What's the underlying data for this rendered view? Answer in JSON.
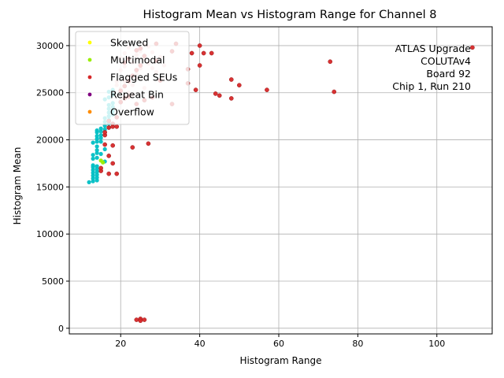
{
  "chart_data": {
    "type": "scatter",
    "title": "Histogram Mean vs Histogram Range for Channel 8",
    "xlabel": "Histogram Range",
    "ylabel": "Histogram Mean",
    "xlim": [
      7,
      114
    ],
    "ylim": [
      -600,
      32000
    ],
    "xticks": [
      20,
      40,
      60,
      80,
      100
    ],
    "yticks": [
      0,
      5000,
      10000,
      15000,
      20000,
      25000,
      30000
    ],
    "grid": true,
    "legend_placement": "top-left",
    "annotation": [
      "ATLAS Upgrade",
      "COLUTAv4",
      "Board 92",
      "Chip 1, Run 210"
    ],
    "series": [
      {
        "name": "Skewed",
        "color": "#ffff00",
        "points": []
      },
      {
        "name": "Multimodal",
        "color": "#99ee00",
        "points": [
          [
            15,
            17800
          ],
          [
            15.5,
            17600
          ]
        ]
      },
      {
        "name": "Flagged SEUs",
        "color": "#d62728",
        "points": [
          [
            24,
            900
          ],
          [
            25,
            1000
          ],
          [
            26,
            900
          ],
          [
            25,
            800
          ],
          [
            17,
            16400
          ],
          [
            19,
            16400
          ],
          [
            15,
            16700
          ],
          [
            15,
            17000
          ],
          [
            18,
            17500
          ],
          [
            17,
            18300
          ],
          [
            18,
            19400
          ],
          [
            16,
            19500
          ],
          [
            23,
            19200
          ],
          [
            27,
            19600
          ],
          [
            16,
            20500
          ],
          [
            16,
            20800
          ],
          [
            17,
            21300
          ],
          [
            18,
            21400
          ],
          [
            19,
            21400
          ],
          [
            18,
            21700
          ],
          [
            17,
            22000
          ],
          [
            19,
            22400
          ],
          [
            20,
            24000
          ],
          [
            21,
            24400
          ],
          [
            22,
            24600
          ],
          [
            24,
            23800
          ],
          [
            26,
            24200
          ],
          [
            28,
            24500
          ],
          [
            33,
            23800
          ],
          [
            48,
            24400
          ],
          [
            39,
            25300
          ],
          [
            44,
            24900
          ],
          [
            45,
            24700
          ],
          [
            57,
            25300
          ],
          [
            74,
            25100
          ],
          [
            20,
            25200
          ],
          [
            21,
            25700
          ],
          [
            22,
            26200
          ],
          [
            23,
            26800
          ],
          [
            24,
            27400
          ],
          [
            25,
            27900
          ],
          [
            30,
            26300
          ],
          [
            37,
            26000
          ],
          [
            48,
            26400
          ],
          [
            50,
            25800
          ],
          [
            40,
            27900
          ],
          [
            37,
            27500
          ],
          [
            21,
            28200
          ],
          [
            22,
            28600
          ],
          [
            26,
            28900
          ],
          [
            29,
            28400
          ],
          [
            33,
            29400
          ],
          [
            38,
            29200
          ],
          [
            41,
            29200
          ],
          [
            43,
            29200
          ],
          [
            24,
            29500
          ],
          [
            25,
            29700
          ],
          [
            29,
            30200
          ],
          [
            34,
            30200
          ],
          [
            40,
            30000
          ],
          [
            73,
            28300
          ],
          [
            109,
            29800
          ]
        ]
      },
      {
        "name": "Repeat Bin",
        "color": "#800080",
        "points": []
      },
      {
        "name": "Overflow",
        "color": "#ff8c00",
        "points": []
      },
      {
        "name": "",
        "color": "#00bfc4",
        "points": [
          [
            12,
            15500
          ],
          [
            13,
            15600
          ],
          [
            14,
            15700
          ],
          [
            13,
            15900
          ],
          [
            14,
            16000
          ],
          [
            13,
            16200
          ],
          [
            14,
            16300
          ],
          [
            13,
            16500
          ],
          [
            14,
            16600
          ],
          [
            13,
            16800
          ],
          [
            14,
            16900
          ],
          [
            13,
            17100
          ],
          [
            14,
            17200
          ],
          [
            13,
            17300
          ],
          [
            16,
            17700
          ],
          [
            13,
            18000
          ],
          [
            14,
            18100
          ],
          [
            13,
            18400
          ],
          [
            14,
            18600
          ],
          [
            15,
            18500
          ],
          [
            14,
            18900
          ],
          [
            16,
            19000
          ],
          [
            14,
            19300
          ],
          [
            13,
            19700
          ],
          [
            14,
            19800
          ],
          [
            15,
            19800
          ],
          [
            14,
            20100
          ],
          [
            15,
            20200
          ],
          [
            14,
            20400
          ],
          [
            15,
            20500
          ],
          [
            14,
            20800
          ],
          [
            15,
            20900
          ],
          [
            14,
            21000
          ],
          [
            16,
            21100
          ],
          [
            15,
            21200
          ],
          [
            17,
            21300
          ],
          [
            16,
            21500
          ],
          [
            17,
            21700
          ],
          [
            16,
            21900
          ],
          [
            17,
            22100
          ],
          [
            16,
            22300
          ],
          [
            17,
            22500
          ],
          [
            18,
            22700
          ],
          [
            17,
            22900
          ],
          [
            18,
            23100
          ],
          [
            17,
            23300
          ],
          [
            18,
            23500
          ],
          [
            17,
            23700
          ],
          [
            18,
            23900
          ],
          [
            16,
            24300
          ],
          [
            17,
            24500
          ],
          [
            18,
            24800
          ],
          [
            17,
            25100
          ],
          [
            18,
            25300
          ]
        ]
      },
      {
        "name": "",
        "color": "#f4c2c2",
        "points": [
          [
            20,
            24200
          ],
          [
            21,
            24600
          ],
          [
            22,
            25000
          ],
          [
            20,
            25400
          ],
          [
            23,
            25800
          ],
          [
            21,
            26200
          ],
          [
            22,
            26600
          ],
          [
            24,
            27000
          ],
          [
            20,
            27400
          ],
          [
            21,
            27800
          ],
          [
            23,
            28200
          ],
          [
            22,
            28600
          ],
          [
            24,
            29000
          ],
          [
            25,
            29400
          ],
          [
            26,
            28600
          ],
          [
            27,
            28100
          ],
          [
            25,
            27600
          ],
          [
            24,
            26500
          ],
          [
            26,
            25500
          ],
          [
            23,
            24800
          ],
          [
            28,
            27600
          ],
          [
            29,
            27200
          ],
          [
            27,
            29900
          ],
          [
            30,
            28800
          ],
          [
            22,
            29800
          ],
          [
            21,
            29200
          ],
          [
            20,
            28700
          ],
          [
            26,
            30100
          ],
          [
            28,
            29300
          ],
          [
            31,
            27900
          ],
          [
            19,
            26200
          ],
          [
            19,
            25800
          ]
        ]
      }
    ]
  }
}
